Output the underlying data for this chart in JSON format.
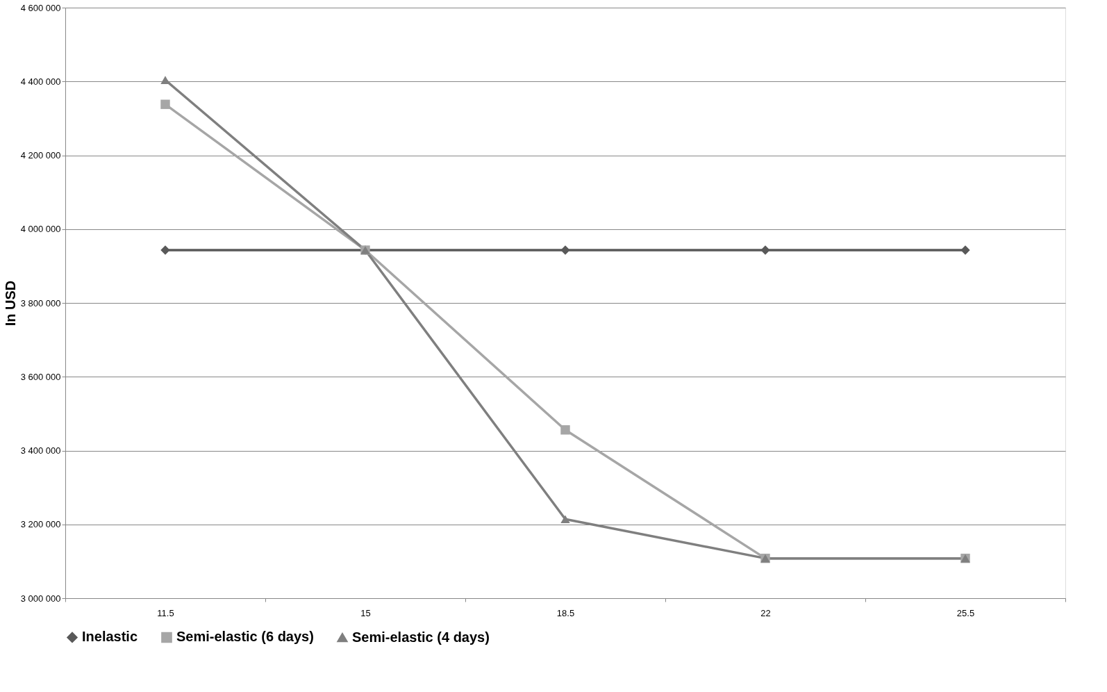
{
  "chart_data": {
    "type": "line",
    "ylabel": "In USD",
    "categories": [
      "11.5",
      "15",
      "18.5",
      "22",
      "25.5"
    ],
    "series": [
      {
        "name": "Inelastic",
        "color": "#595959",
        "marker": "diamond",
        "values": [
          3943000,
          3943000,
          3943000,
          3943000,
          3943000
        ]
      },
      {
        "name": "Semi-elastic (6 days)",
        "color": "#a6a6a6",
        "marker": "square",
        "values": [
          4338000,
          3943000,
          3456000,
          3108000,
          3108000
        ]
      },
      {
        "name": "Semi-elastic (4 days)",
        "color": "#7f7f7f",
        "marker": "triangle",
        "values": [
          4404000,
          3943000,
          3214000,
          3108000,
          3108000
        ]
      }
    ],
    "ylim": [
      3000000,
      4600000
    ],
    "yticks": [
      {
        "value": 3000000,
        "label": "3 000 000"
      },
      {
        "value": 3200000,
        "label": "3 200 000"
      },
      {
        "value": 3400000,
        "label": "3 400 000"
      },
      {
        "value": 3600000,
        "label": "3 600 000"
      },
      {
        "value": 3800000,
        "label": "3 800 000"
      },
      {
        "value": 4000000,
        "label": "4 000 000"
      },
      {
        "value": 4200000,
        "label": "4 200 000"
      },
      {
        "value": 4400000,
        "label": "4 400 000"
      },
      {
        "value": 4600000,
        "label": "4 600 000"
      }
    ],
    "grid": "y",
    "legend": "bottom",
    "line_style": "solid"
  }
}
